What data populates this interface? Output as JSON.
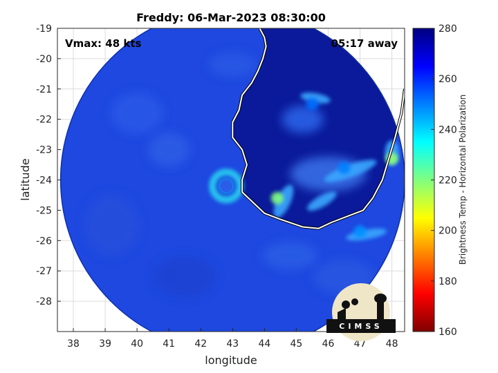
{
  "chart_data": {
    "type": "heatmap",
    "title": "Freddy: 06-Mar-2023 08:30:00",
    "xlabel": "longitude",
    "ylabel": "latitude",
    "xlim": [
      37.5,
      48.4
    ],
    "ylim": [
      -29,
      -19
    ],
    "x_ticks": [
      38,
      39,
      40,
      41,
      42,
      43,
      44,
      45,
      46,
      47,
      48
    ],
    "y_ticks": [
      -19,
      -20,
      -21,
      -22,
      -23,
      -24,
      -25,
      -26,
      -27,
      -28
    ],
    "grid": true,
    "annotations": {
      "vmax": "Vmax: 48 kts",
      "away": "05:17 away"
    },
    "colorbar": {
      "label": "Brightness Temp - Horizontal Polarization",
      "range": [
        160,
        280
      ],
      "ticks": [
        160,
        180,
        200,
        220,
        240,
        260,
        280
      ],
      "colormap": "jet"
    },
    "storm_center": {
      "lon": 42.8,
      "lat": -24.2
    },
    "swath": {
      "center_lon": 43.0,
      "center_lat": -24.0,
      "radius_deg": 5.4
    },
    "features": [
      {
        "lon": 42.8,
        "lat": -24.2,
        "tb": 236
      },
      {
        "lon": 44.4,
        "lat": -24.6,
        "tb": 220
      },
      {
        "lon": 48.0,
        "lat": -23.3,
        "tb": 218
      },
      {
        "lon": 46.5,
        "lat": -23.6,
        "tb": 250
      },
      {
        "lon": 47.0,
        "lat": -25.7,
        "tb": 248
      },
      {
        "lon": 45.5,
        "lat": -21.5,
        "tb": 252
      }
    ],
    "coastline": [
      [
        43.85,
        -19.0
      ],
      [
        44.0,
        -19.3
      ],
      [
        44.05,
        -19.6
      ],
      [
        43.95,
        -20.0
      ],
      [
        43.8,
        -20.4
      ],
      [
        43.6,
        -20.8
      ],
      [
        43.3,
        -21.2
      ],
      [
        43.2,
        -21.7
      ],
      [
        43.0,
        -22.1
      ],
      [
        43.0,
        -22.6
      ],
      [
        43.3,
        -23.0
      ],
      [
        43.45,
        -23.5
      ],
      [
        43.3,
        -24.0
      ],
      [
        43.3,
        -24.4
      ],
      [
        43.7,
        -24.8
      ],
      [
        44.0,
        -25.1
      ],
      [
        44.5,
        -25.3
      ],
      [
        45.2,
        -25.55
      ],
      [
        45.7,
        -25.6
      ],
      [
        46.1,
        -25.4
      ],
      [
        46.6,
        -25.2
      ],
      [
        47.1,
        -25.0
      ],
      [
        47.4,
        -24.6
      ],
      [
        47.7,
        -24.0
      ],
      [
        47.9,
        -23.3
      ],
      [
        48.1,
        -22.6
      ],
      [
        48.3,
        -21.8
      ],
      [
        48.4,
        -21.0
      ]
    ]
  },
  "logo": {
    "text": "CIMSS"
  }
}
